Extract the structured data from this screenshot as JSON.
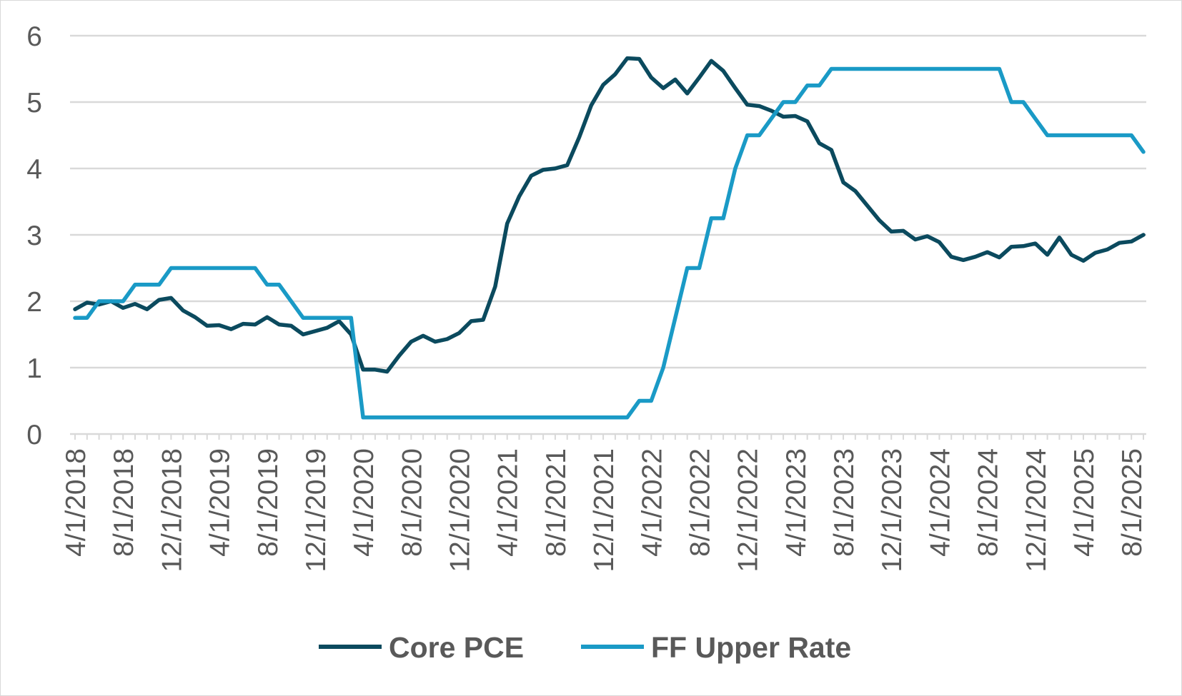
{
  "chart_data": {
    "type": "line",
    "title": "",
    "xlabel": "",
    "ylabel": "",
    "ylim": [
      0,
      6
    ],
    "y_ticks": [
      "0",
      "1",
      "2",
      "3",
      "4",
      "5",
      "6"
    ],
    "grid": "horizontal",
    "legend_position": "bottom",
    "x_tick_labels": [
      "4/1/2018",
      "8/1/2018",
      "12/1/2018",
      "4/1/2019",
      "8/1/2019",
      "12/1/2019",
      "4/1/2020",
      "8/1/2020",
      "12/1/2020",
      "4/1/2021",
      "8/1/2021",
      "12/1/2021",
      "4/1/2022",
      "8/1/2022",
      "12/1/2022",
      "4/1/2023",
      "8/1/2023",
      "12/1/2023",
      "4/1/2024",
      "8/1/2024",
      "12/1/2024",
      "4/1/2025",
      "8/1/2025"
    ],
    "x": [
      "2018-04",
      "2018-05",
      "2018-06",
      "2018-07",
      "2018-08",
      "2018-09",
      "2018-10",
      "2018-11",
      "2018-12",
      "2019-01",
      "2019-02",
      "2019-03",
      "2019-04",
      "2019-05",
      "2019-06",
      "2019-07",
      "2019-08",
      "2019-09",
      "2019-10",
      "2019-11",
      "2019-12",
      "2020-01",
      "2020-02",
      "2020-03",
      "2020-04",
      "2020-05",
      "2020-06",
      "2020-07",
      "2020-08",
      "2020-09",
      "2020-10",
      "2020-11",
      "2020-12",
      "2021-01",
      "2021-02",
      "2021-03",
      "2021-04",
      "2021-05",
      "2021-06",
      "2021-07",
      "2021-08",
      "2021-09",
      "2021-10",
      "2021-11",
      "2021-12",
      "2022-01",
      "2022-02",
      "2022-03",
      "2022-04",
      "2022-05",
      "2022-06",
      "2022-07",
      "2022-08",
      "2022-09",
      "2022-10",
      "2022-11",
      "2022-12",
      "2023-01",
      "2023-02",
      "2023-03",
      "2023-04",
      "2023-05",
      "2023-06",
      "2023-07",
      "2023-08",
      "2023-09",
      "2023-10",
      "2023-11",
      "2023-12",
      "2024-01",
      "2024-02",
      "2024-03",
      "2024-04",
      "2024-05",
      "2024-06",
      "2024-07",
      "2024-08",
      "2024-09",
      "2024-10",
      "2024-11",
      "2024-12",
      "2025-01",
      "2025-02",
      "2025-03",
      "2025-04",
      "2025-05",
      "2025-06",
      "2025-07",
      "2025-08",
      "2025-09"
    ],
    "series": [
      {
        "name": "Core PCE",
        "color": "#0b4a5e",
        "values": [
          1.88,
          1.98,
          1.95,
          2.0,
          1.9,
          1.96,
          1.88,
          2.02,
          2.05,
          1.86,
          1.76,
          1.63,
          1.64,
          1.58,
          1.66,
          1.65,
          1.76,
          1.65,
          1.63,
          1.5,
          1.55,
          1.6,
          1.7,
          1.5,
          0.97,
          0.97,
          0.94,
          1.18,
          1.39,
          1.48,
          1.39,
          1.43,
          1.52,
          1.7,
          1.72,
          2.22,
          3.17,
          3.58,
          3.89,
          3.98,
          4.0,
          4.05,
          4.47,
          4.95,
          5.26,
          5.42,
          5.66,
          5.65,
          5.37,
          5.21,
          5.34,
          5.13,
          5.37,
          5.62,
          5.47,
          5.21,
          4.96,
          4.94,
          4.87,
          4.78,
          4.79,
          4.71,
          4.38,
          4.28,
          3.79,
          3.66,
          3.44,
          3.22,
          3.05,
          3.06,
          2.93,
          2.98,
          2.89,
          2.67,
          2.62,
          2.67,
          2.74,
          2.66,
          2.82,
          2.83,
          2.87,
          2.7,
          2.96,
          2.7,
          2.61,
          2.73,
          2.78,
          2.88,
          2.9,
          3.0
        ]
      },
      {
        "name": "FF Upper Rate",
        "color": "#1a9ac6",
        "values": [
          1.75,
          1.75,
          2.0,
          2.0,
          2.0,
          2.25,
          2.25,
          2.25,
          2.5,
          2.5,
          2.5,
          2.5,
          2.5,
          2.5,
          2.5,
          2.5,
          2.25,
          2.25,
          2.0,
          1.75,
          1.75,
          1.75,
          1.75,
          1.75,
          0.25,
          0.25,
          0.25,
          0.25,
          0.25,
          0.25,
          0.25,
          0.25,
          0.25,
          0.25,
          0.25,
          0.25,
          0.25,
          0.25,
          0.25,
          0.25,
          0.25,
          0.25,
          0.25,
          0.25,
          0.25,
          0.25,
          0.25,
          0.5,
          0.5,
          1.0,
          1.75,
          2.5,
          2.5,
          3.25,
          3.25,
          4.0,
          4.5,
          4.5,
          4.75,
          5.0,
          5.0,
          5.25,
          5.25,
          5.5,
          5.5,
          5.5,
          5.5,
          5.5,
          5.5,
          5.5,
          5.5,
          5.5,
          5.5,
          5.5,
          5.5,
          5.5,
          5.5,
          5.5,
          5.0,
          5.0,
          4.75,
          4.5,
          4.5,
          4.5,
          4.5,
          4.5,
          4.5,
          4.5,
          4.5,
          4.25
        ]
      }
    ]
  }
}
